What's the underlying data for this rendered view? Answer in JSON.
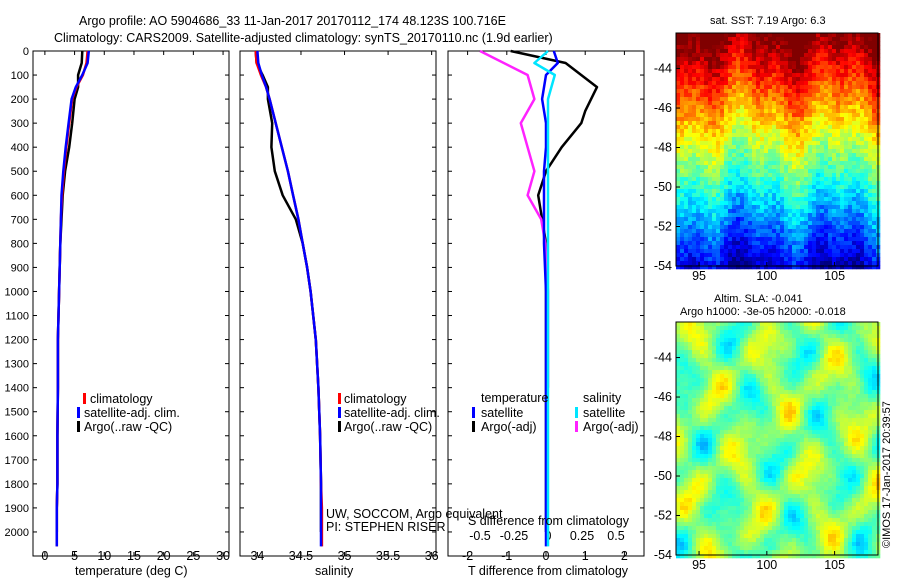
{
  "header": {
    "line1": "Argo profile: AO 5904686_33 11-Jan-2017 20170112_174 48.123S 100.716E",
    "line2": "Climatology: CARS2009. Satellite-adjusted climatology: synTS_20170110.nc (1.9d earlier)"
  },
  "colors": {
    "clim": "#ff0000",
    "sat": "#0000ff",
    "argo": "#000000",
    "sat_s": "#00e5ff",
    "argo_s": "#ff22ff"
  },
  "depth_ticks": [
    0,
    100,
    200,
    300,
    400,
    500,
    600,
    700,
    800,
    900,
    1000,
    1100,
    1200,
    1300,
    1400,
    1500,
    1600,
    1700,
    1800,
    1900,
    2000
  ],
  "temp_panel": {
    "xlabel": "temperature (deg C)",
    "xticks": [
      0,
      5,
      10,
      15,
      20,
      25,
      30
    ],
    "legend": [
      "climatology",
      "satellite-adj. clim.",
      "Argo(..raw -QC)"
    ]
  },
  "sal_panel": {
    "xlabel": "salinity",
    "xticks": [
      "34",
      "34.5",
      "35",
      "35.5",
      "36"
    ],
    "legend": [
      "climatology",
      "satellite-adj. clim.",
      "Argo(..raw -QC)"
    ],
    "note1": "UW, SOCCOM, Argo equivalent",
    "note2": "PI: STEPHEN RISER"
  },
  "diff_panel": {
    "xlabel": "T difference from climatology",
    "xticks": [
      "-2",
      "-1",
      "0",
      "1",
      "2"
    ],
    "top_label": "S difference from climatology",
    "top_ticks": [
      "-0.5",
      "-0.25",
      "0",
      "0.25",
      "0.5"
    ],
    "legend_t_title": "temperature",
    "legend_s_title": "salinity",
    "legend_t": [
      "satellite",
      "Argo(-adj)"
    ],
    "legend_s": [
      "satellite",
      "Argo(-adj)"
    ]
  },
  "sst_map": {
    "title": "sat. SST: 7.19  Argo: 6.3",
    "yticks": [
      "-44",
      "-46",
      "-48",
      "-50",
      "-52",
      "-54"
    ],
    "xticks": [
      "95",
      "100",
      "105"
    ]
  },
  "sla_map": {
    "title1": "Altim. SLA: -0.041",
    "title2": "Argo h1000: -3e-05 h2000: -0.018",
    "yticks": [
      "-44",
      "-46",
      "-48",
      "-50",
      "-52",
      "-54"
    ],
    "xticks": [
      "95",
      "100",
      "105"
    ]
  },
  "credit": "©IMOS 17-Jan-2017 20:39:57",
  "chart_data": [
    {
      "type": "line",
      "name": "temperature profile",
      "xlabel": "temperature (deg C)",
      "xlim": [
        -2,
        31
      ],
      "ylim": [
        2100,
        0
      ],
      "series": [
        {
          "name": "climatology",
          "x": [
            7.2,
            7.0,
            6.4,
            5.3,
            4.6,
            4.1,
            3.6,
            3.2,
            2.9,
            2.7,
            2.6,
            2.5,
            2.4,
            2.3,
            2.2,
            2.2,
            2.1,
            2.1,
            2.0,
            2.0,
            2.0
          ],
          "y": [
            0,
            50,
            100,
            150,
            200,
            300,
            400,
            500,
            600,
            700,
            800,
            900,
            1000,
            1100,
            1200,
            1400,
            1600,
            1800,
            1900,
            2000,
            2060
          ]
        },
        {
          "name": "satellite-adj. clim.",
          "x": [
            7.4,
            7.2,
            6.3,
            5.2,
            4.5,
            4.0,
            3.5,
            3.1,
            2.8,
            2.7,
            2.6,
            2.5,
            2.4,
            2.3,
            2.2,
            2.2,
            2.1,
            2.1,
            2.0,
            2.0,
            2.0
          ],
          "y": [
            0,
            50,
            100,
            150,
            200,
            300,
            400,
            500,
            600,
            700,
            800,
            900,
            1000,
            1100,
            1200,
            1400,
            1600,
            1800,
            1900,
            2000,
            2060
          ]
        },
        {
          "name": "Argo(..raw -QC)",
          "x": [
            6.3,
            6.2,
            5.6,
            5.6,
            5.0,
            4.6,
            4.1,
            3.4,
            3.0,
            2.8,
            2.6,
            2.5,
            2.4,
            2.3,
            2.2,
            2.2,
            2.1,
            2.1,
            2.0,
            2.0
          ],
          "y": [
            0,
            50,
            100,
            150,
            200,
            300,
            400,
            500,
            600,
            700,
            800,
            900,
            1000,
            1100,
            1200,
            1400,
            1600,
            1800,
            1900,
            2000
          ]
        }
      ]
    },
    {
      "type": "line",
      "name": "salinity profile",
      "xlabel": "salinity",
      "xlim": [
        33.8,
        36.05
      ],
      "ylim": [
        2100,
        0
      ],
      "series": [
        {
          "name": "climatology",
          "x": [
            33.98,
            33.99,
            34.04,
            34.1,
            34.14,
            34.21,
            34.28,
            34.35,
            34.41,
            34.47,
            34.52,
            34.57,
            34.61,
            34.64,
            34.67,
            34.7,
            34.72,
            34.73,
            34.74,
            34.74,
            34.74
          ],
          "y": [
            0,
            50,
            100,
            150,
            200,
            300,
            400,
            500,
            600,
            700,
            800,
            900,
            1000,
            1100,
            1200,
            1400,
            1600,
            1800,
            1900,
            2000,
            2060
          ]
        },
        {
          "name": "satellite-adj. clim.",
          "x": [
            34.0,
            34.01,
            34.05,
            34.1,
            34.14,
            34.21,
            34.28,
            34.35,
            34.41,
            34.47,
            34.52,
            34.57,
            34.61,
            34.64,
            34.67,
            34.7,
            34.72,
            34.73,
            34.73,
            34.73,
            34.73
          ],
          "y": [
            0,
            50,
            100,
            150,
            200,
            300,
            400,
            500,
            600,
            700,
            800,
            900,
            1000,
            1100,
            1200,
            1400,
            1600,
            1800,
            1900,
            2000,
            2060
          ]
        },
        {
          "name": "Argo(..raw -QC)",
          "x": [
            33.98,
            33.99,
            34.06,
            34.12,
            34.12,
            34.17,
            34.16,
            34.2,
            34.29,
            34.44,
            34.52,
            34.57,
            34.61,
            34.64,
            34.67,
            34.7,
            34.72,
            34.73,
            34.73,
            34.73
          ],
          "y": [
            0,
            50,
            100,
            150,
            200,
            300,
            400,
            500,
            600,
            700,
            800,
            900,
            1000,
            1100,
            1200,
            1400,
            1600,
            1800,
            1900,
            2000
          ]
        }
      ]
    },
    {
      "type": "line",
      "name": "difference from climatology",
      "xlabel": "T difference from climatology",
      "xlim": [
        -2.5,
        2.5
      ],
      "ylim": [
        2100,
        0
      ],
      "series": [
        {
          "name": "temperature satellite",
          "x": [
            0.2,
            0.3,
            0.0,
            -0.1,
            0.0,
            0.0,
            -0.05,
            -0.05,
            -0.05,
            0.0,
            0.0,
            0.0,
            0.0,
            0.0,
            0.0,
            0.0,
            0.0
          ],
          "y": [
            0,
            50,
            100,
            200,
            300,
            400,
            500,
            600,
            800,
            1000,
            1200,
            1400,
            1600,
            1800,
            1900,
            2000,
            2060
          ]
        },
        {
          "name": "temperature Argo(-adj)",
          "x": [
            -0.9,
            0.5,
            1.3,
            1.0,
            0.9,
            0.4,
            0.0,
            -0.2,
            -0.1,
            0.0,
            0.0,
            0.0,
            0.0,
            0.0,
            0.0,
            0.0
          ],
          "y": [
            0,
            50,
            150,
            250,
            300,
            400,
            500,
            600,
            700,
            800,
            1000,
            1200,
            1400,
            1600,
            1800,
            2000
          ]
        },
        {
          "name": "salinity satellite",
          "x": [
            0.0,
            -0.1,
            0.05,
            0.0,
            0.0,
            0.0,
            0.0,
            0.0,
            0.0,
            0.0,
            0.0,
            0.0
          ],
          "y": [
            0,
            50,
            100,
            200,
            300,
            500,
            800,
            1000,
            1400,
            1800,
            2000,
            2060
          ]
        },
        {
          "name": "salinity Argo(-adj)",
          "x": [
            -0.5,
            -0.15,
            -0.1,
            -0.2,
            -0.15,
            -0.1,
            -0.15,
            -0.05,
            -0.02,
            0.0,
            0.0,
            0.0
          ],
          "y": [
            0,
            100,
            200,
            300,
            400,
            500,
            600,
            700,
            800,
            1000,
            1200,
            1400
          ]
        }
      ]
    },
    {
      "type": "heatmap",
      "name": "sat. SST",
      "title": "sat. SST: 7.19  Argo: 6.3",
      "xticks": [
        95,
        100,
        105
      ],
      "yticks": [
        -44,
        -46,
        -48,
        -50,
        -52,
        -54
      ],
      "xlim": [
        93.3,
        108.2
      ],
      "ylim": [
        -54,
        -42.2
      ]
    },
    {
      "type": "heatmap",
      "name": "Altim. SLA",
      "title": "Altim. SLA: -0.041",
      "xticks": [
        95,
        100,
        105
      ],
      "yticks": [
        -44,
        -46,
        -48,
        -50,
        -52,
        -54
      ],
      "xlim": [
        93.3,
        108.2
      ],
      "ylim": [
        -54,
        -42.2
      ]
    }
  ]
}
